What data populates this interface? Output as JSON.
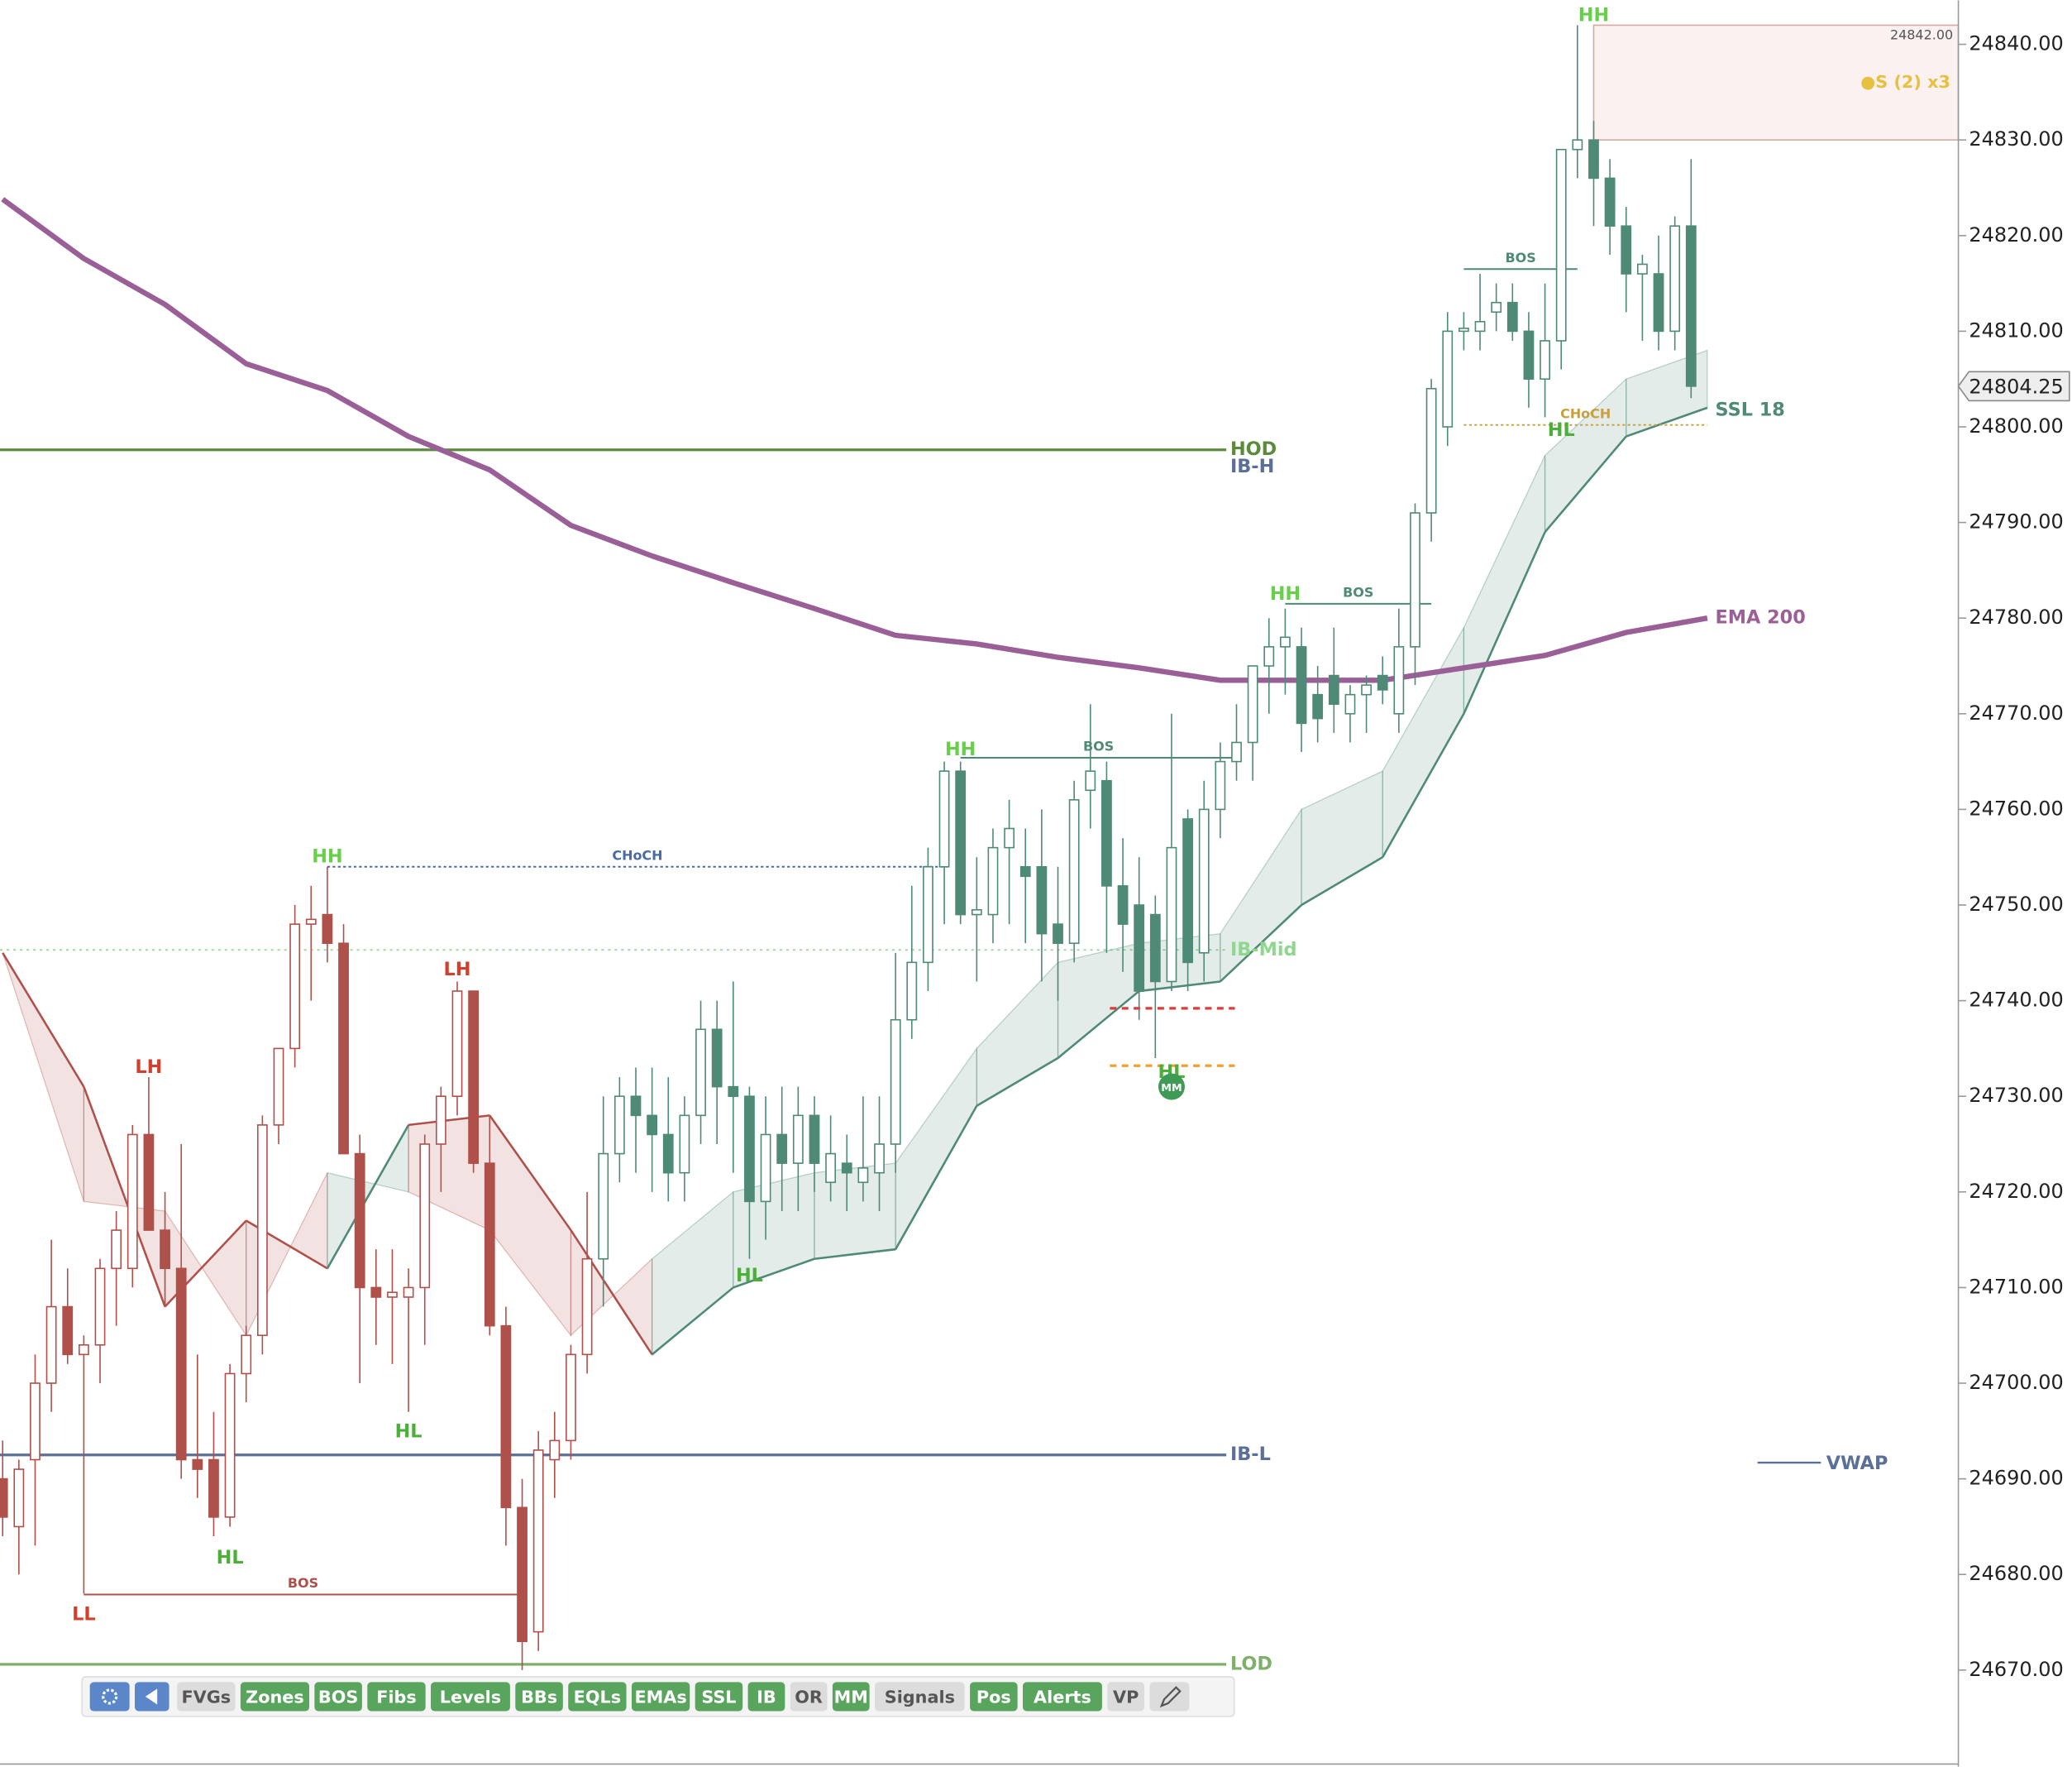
{
  "chart_data": {
    "type": "candlestick",
    "ylim": [
      24659.9,
      24844.6
    ],
    "yticks": [
      {
        "value": 24670,
        "label": "24670.00"
      },
      {
        "value": 24680,
        "label": "24680.00"
      },
      {
        "value": 24690,
        "label": "24690.00"
      },
      {
        "value": 24700,
        "label": "24700.00"
      },
      {
        "value": 24710,
        "label": "24710.00"
      },
      {
        "value": 24720,
        "label": "24720.00"
      },
      {
        "value": 24730,
        "label": "24730.00"
      },
      {
        "value": 24740,
        "label": "24740.00"
      },
      {
        "value": 24750,
        "label": "24750.00"
      },
      {
        "value": 24760,
        "label": "24760.00"
      },
      {
        "value": 24770,
        "label": "24770.00"
      },
      {
        "value": 24780,
        "label": "24780.00"
      },
      {
        "value": 24790,
        "label": "24790.00"
      },
      {
        "value": 24800,
        "label": "24800.00"
      },
      {
        "value": 24810,
        "label": "24810.00"
      },
      {
        "value": 24820,
        "label": "24820.00"
      },
      {
        "value": 24830,
        "label": "24830.00"
      },
      {
        "value": 24840,
        "label": "24840.00"
      }
    ],
    "current_price": 24804.25,
    "candles": [
      {
        "color": "#b0504a",
        "data": [
          [
            24690,
            24694,
            24684,
            24686
          ],
          [
            24685,
            24692,
            24680,
            24691
          ],
          [
            24692,
            24703,
            24683,
            24700
          ],
          [
            24700,
            24715,
            24697,
            24708
          ],
          [
            24708,
            24712,
            24702,
            24703
          ],
          [
            24703,
            24705,
            24678,
            24704
          ],
          [
            24704,
            24713,
            24700,
            24712
          ],
          [
            24712,
            24718,
            24706,
            24716
          ],
          [
            24712,
            24727,
            24710,
            24726
          ],
          [
            24726,
            24732,
            24718,
            24716
          ],
          [
            24716,
            24720,
            24708,
            24712
          ],
          [
            24712,
            24725,
            24690,
            24692
          ],
          [
            24692,
            24703,
            24688,
            24691
          ],
          [
            24692,
            24697,
            24684,
            24686
          ],
          [
            24686,
            24702,
            24685,
            24701
          ],
          [
            24701,
            24706,
            24698,
            24705
          ],
          [
            24705,
            24728,
            24703,
            24727
          ],
          [
            24727,
            24735,
            24725,
            24735
          ],
          [
            24735,
            24750,
            24733,
            24748
          ],
          [
            24748,
            24752,
            24740,
            24748.5
          ],
          [
            24749,
            24754,
            24744,
            24746
          ],
          [
            24746,
            24748,
            24724,
            24724
          ],
          [
            24724,
            24726,
            24700,
            24710
          ],
          [
            24710,
            24714,
            24704,
            24709
          ],
          [
            24709,
            24714,
            24702,
            24709.5
          ],
          [
            24709,
            24712,
            24697,
            24710
          ],
          [
            24710,
            24726,
            24704,
            24725
          ],
          [
            24725,
            24731,
            24720,
            24730
          ],
          [
            24730,
            24742,
            24728,
            24741
          ],
          [
            24741,
            24741,
            24722,
            24723
          ],
          [
            24723,
            24728,
            24705,
            24706
          ],
          [
            24706,
            24708,
            24683,
            24687
          ],
          [
            24687,
            24690,
            24670,
            24673
          ],
          [
            24674,
            24695,
            24672,
            24693
          ],
          [
            24692,
            24697,
            24688,
            24694
          ],
          [
            24694,
            24704,
            24692,
            24703
          ],
          [
            24703,
            24720,
            24701,
            24713
          ]
        ]
      },
      {
        "color": "#4e8a76",
        "data": [
          [
            24713,
            24730,
            24708,
            24724
          ],
          [
            24724,
            24732,
            24721,
            24730
          ],
          [
            24730,
            24733,
            24722,
            24728
          ],
          [
            24728,
            24733,
            24720,
            24726
          ],
          [
            24726,
            24732,
            24719,
            24722
          ],
          [
            24722,
            24730,
            24719,
            24728
          ],
          [
            24728,
            24740,
            24725,
            24737
          ],
          [
            24737,
            24740,
            24725,
            24731
          ],
          [
            24731,
            24742,
            24722,
            24730
          ],
          [
            24730,
            24731,
            24713,
            24719
          ],
          [
            24719,
            24730,
            24715,
            24726
          ],
          [
            24726,
            24731,
            24718,
            24723
          ],
          [
            24723,
            24731,
            24718,
            24728
          ],
          [
            24728,
            24730,
            24720,
            24723
          ],
          [
            24721,
            24728,
            24719,
            24724
          ],
          [
            24723,
            24726,
            24718,
            24722
          ],
          [
            24721,
            24730,
            24719,
            24722.5
          ],
          [
            24722,
            24730,
            24718,
            24725
          ],
          [
            24725,
            24745,
            24722,
            24738
          ],
          [
            24738,
            24752,
            24736,
            24744
          ],
          [
            24744,
            24756,
            24741,
            24754
          ],
          [
            24754,
            24765,
            24748,
            24764
          ],
          [
            24764,
            24765,
            24748,
            24749
          ],
          [
            24749,
            24755,
            24742,
            24749.5
          ],
          [
            24749,
            24758,
            24746,
            24756
          ],
          [
            24756,
            24761,
            24748,
            24758
          ],
          [
            24754,
            24758,
            24746,
            24753
          ],
          [
            24754,
            24760,
            24742,
            24747
          ],
          [
            24748,
            24754,
            24740,
            24746
          ],
          [
            24746,
            24763,
            24744,
            24761
          ],
          [
            24762,
            24771,
            24758,
            24764
          ],
          [
            24763,
            24765,
            24745,
            24752
          ],
          [
            24752,
            24757,
            24743,
            24748
          ],
          [
            24750,
            24755,
            24738,
            24741
          ],
          [
            24749,
            24751,
            24734,
            24742
          ],
          [
            24742,
            24770,
            24741,
            24756
          ],
          [
            24759,
            24760,
            24741,
            24744
          ],
          [
            24745,
            24763,
            24742,
            24760
          ],
          [
            24760,
            24767,
            24757,
            24765
          ],
          [
            24765,
            24771,
            24763,
            24767
          ],
          [
            24767,
            24775,
            24763,
            24775
          ],
          [
            24775,
            24780,
            24770,
            24777
          ],
          [
            24777,
            24781,
            24772,
            24778
          ],
          [
            24777,
            24779,
            24766,
            24769
          ],
          [
            24772,
            24775,
            24767,
            24769.5
          ],
          [
            24774,
            24779,
            24768,
            24771
          ],
          [
            24770,
            24773,
            24767,
            24772
          ],
          [
            24772,
            24774,
            24768,
            24773
          ],
          [
            24774,
            24776,
            24771,
            24772.5
          ],
          [
            24770,
            24781,
            24768,
            24777
          ],
          [
            24777,
            24792,
            24773,
            24791
          ],
          [
            24791,
            24805,
            24788,
            24804
          ],
          [
            24800,
            24812,
            24798,
            24810
          ],
          [
            24810,
            24812,
            24808,
            24810.3
          ],
          [
            24810,
            24816,
            24808,
            24811
          ],
          [
            24812,
            24815,
            24810,
            24813
          ],
          [
            24813,
            24815,
            24809,
            24810
          ],
          [
            24810,
            24812,
            24802,
            24805
          ],
          [
            24805,
            24815,
            24801,
            24809
          ],
          [
            24809,
            24829,
            24806,
            24829
          ],
          [
            24829,
            24842,
            24826,
            24830
          ],
          [
            24830,
            24832,
            24821,
            24826
          ],
          [
            24826,
            24828,
            24818,
            24821
          ],
          [
            24821,
            24823,
            24812,
            24816
          ],
          [
            24816,
            24818,
            24809,
            24817
          ],
          [
            24816,
            24820,
            24808,
            24810
          ],
          [
            24810,
            24822,
            24808,
            24821
          ],
          [
            24821,
            24828,
            24803,
            24804.25
          ]
        ]
      }
    ],
    "ema": {
      "name": "EMA 200",
      "color": "#9a5f96",
      "x": [
        0,
        5,
        10,
        15,
        20,
        25,
        30,
        35,
        40,
        45,
        50,
        55,
        60,
        65,
        70,
        75,
        80,
        85,
        90,
        95,
        100,
        105
      ],
      "values": [
        24823.8,
        24817.6,
        24812.8,
        24806.6,
        24803.8,
        24799,
        24795.5,
        24789.7,
        24786.5,
        24783.7,
        24781,
        24778.2,
        24777.3,
        24775.9,
        24774.8,
        24773.5,
        24773.5,
        24773.5,
        24774.8,
        24776.1,
        24778.5,
        24780
      ]
    },
    "ssl": {
      "name": "SSL 18",
      "color": "#4e8a76",
      "color_down": "#b0504a",
      "x": [
        0,
        5,
        10,
        15,
        20,
        25,
        30,
        35,
        40,
        45,
        50,
        55,
        60,
        65,
        70,
        75,
        80,
        85,
        90,
        95,
        100,
        105
      ],
      "line": [
        24745,
        24731,
        24708,
        24717,
        24712,
        24727,
        24728,
        24716,
        24703,
        24710,
        24713,
        24714,
        24729,
        24734,
        24741,
        24742,
        24750,
        24755,
        24770,
        24789,
        24799,
        24802
      ],
      "cloud": [
        24745,
        24719,
        24718,
        24705,
        24722,
        24720,
        24716,
        24705,
        24713,
        24720,
        24722,
        24723,
        24735,
        24744,
        24746,
        24747,
        24760,
        24764,
        24779,
        24797,
        24805,
        24808
      ]
    },
    "levels": [
      {
        "name": "HOD",
        "value": 24797.6,
        "color": "#5b8c3e",
        "dash": false
      },
      {
        "name": "IB-H",
        "value": 24797.6,
        "color": "#5a6f9a",
        "dash": false
      },
      {
        "name": "IB-Mid",
        "value": 24745.3,
        "color": "#8fd68f",
        "dash": true
      },
      {
        "name": "IB-L",
        "value": 24692.5,
        "color": "#5a6f9a",
        "dash": false
      },
      {
        "name": "LOD",
        "value": 24670.6,
        "color": "#7fb06a",
        "dash": false
      }
    ],
    "structure": [
      {
        "text": "BOS",
        "from": 5,
        "to": 32,
        "value": 24677.9,
        "color": "#b0504a",
        "dash": false
      },
      {
        "text": "CHoCH",
        "from": 20,
        "to": 58.2,
        "value": 24754,
        "color": "#4a6aa8",
        "dash": true
      },
      {
        "text": "BOS",
        "from": 59,
        "to": 76,
        "value": 24765.4,
        "color": "#4e8a76",
        "dash": false
      },
      {
        "text": "BOS",
        "from": 79,
        "to": 88,
        "value": 24781.5,
        "color": "#4e8a76",
        "dash": false
      },
      {
        "text": "BOS",
        "from": 90,
        "to": 97,
        "value": 24816.5,
        "color": "#4e8a76",
        "dash": false
      },
      {
        "text": "CHoCH",
        "from": 90,
        "to": 105,
        "value": 24800.2,
        "color": "#c9a040",
        "dash": true
      }
    ],
    "pivots": [
      {
        "text": "LL",
        "x": 5,
        "y": 24675.8,
        "color": "#d0402c"
      },
      {
        "text": "LH",
        "x": 9,
        "y": 24733,
        "color": "#d0402c"
      },
      {
        "text": "HL",
        "x": 14,
        "y": 24681.7,
        "color": "#4caf3a"
      },
      {
        "text": "HH",
        "x": 20,
        "y": 24755,
        "color": "#66d04a"
      },
      {
        "text": "HL",
        "x": 25,
        "y": 24694.9,
        "color": "#4caf3a"
      },
      {
        "text": "LH",
        "x": 28,
        "y": 24743.2,
        "color": "#d0402c"
      },
      {
        "text": "HL",
        "x": 46,
        "y": 24711.2,
        "color": "#4caf3a"
      },
      {
        "text": "HH",
        "x": 59,
        "y": 24766.2,
        "color": "#66d04a"
      },
      {
        "text": "HL",
        "x": 72,
        "y": 24732.5,
        "color": "#4caf3a"
      },
      {
        "text": "HH",
        "x": 79,
        "y": 24782.5,
        "color": "#66d04a"
      },
      {
        "text": "HL",
        "x": 96,
        "y": 24799.6,
        "color": "#4caf3a"
      },
      {
        "text": "HH",
        "x": 98,
        "y": 24843,
        "color": "#66d04a"
      }
    ],
    "stops": [
      {
        "from": 68.2,
        "to": 75.9,
        "value": 24739.2,
        "color": "#e03a3a"
      },
      {
        "from": 68.2,
        "to": 75.9,
        "value": 24733.2,
        "color": "#f0a030"
      }
    ],
    "marker": {
      "text": "MM",
      "x": 72,
      "y": 24731
    },
    "zone": {
      "from": 98,
      "top": 24842,
      "top_label": "24842.00",
      "bottom": 24830,
      "text": "●S (2) x3"
    },
    "vwap": {
      "name": "VWAP",
      "color": "#5a6f9a"
    }
  },
  "toolbar": {
    "buttons": [
      {
        "label": "FVGs",
        "active": false
      },
      {
        "label": "Zones",
        "active": true
      },
      {
        "label": "BOS",
        "active": true
      },
      {
        "label": "Fibs",
        "active": true
      },
      {
        "label": "Levels",
        "active": true
      },
      {
        "label": "BBs",
        "active": true
      },
      {
        "label": "EQLs",
        "active": true
      },
      {
        "label": "EMAs",
        "active": true
      },
      {
        "label": "SSL",
        "active": true
      },
      {
        "label": "IB",
        "active": true
      },
      {
        "label": "OR",
        "active": false
      },
      {
        "label": "MM",
        "active": true
      },
      {
        "label": "Signals",
        "active": false
      },
      {
        "label": "Pos",
        "active": true
      },
      {
        "label": "Alerts",
        "active": true
      },
      {
        "label": "VP",
        "active": false
      }
    ]
  }
}
